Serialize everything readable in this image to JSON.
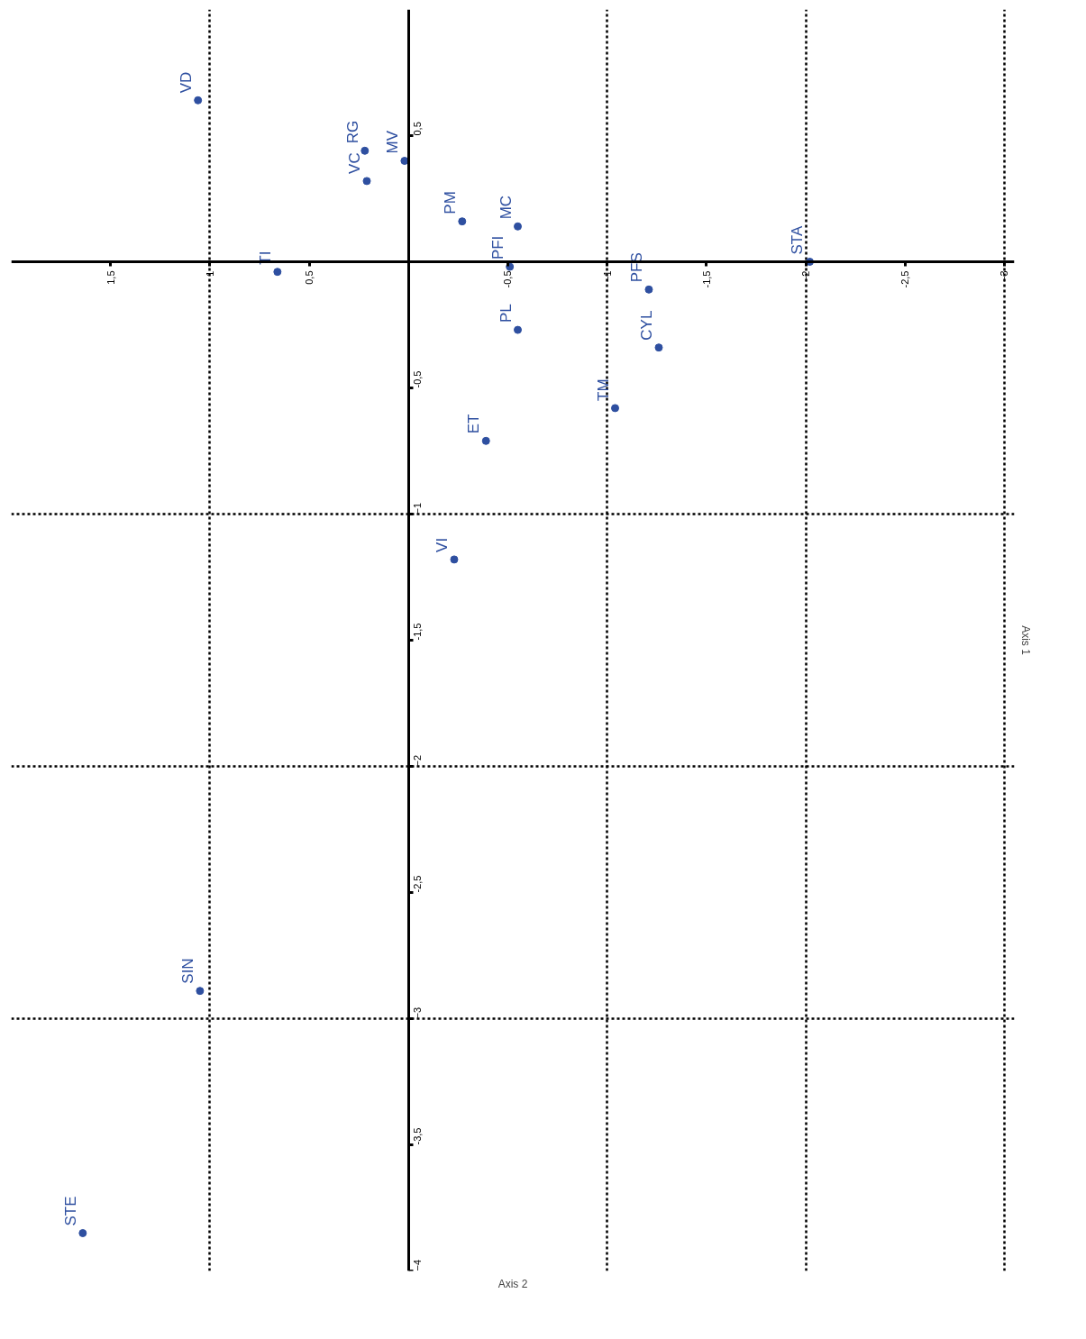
{
  "chart_data": {
    "type": "scatter",
    "xlabel": "Axis 2",
    "ylabel": "Axis 1",
    "xlim": [
      2,
      -3.05
    ],
    "ylim": [
      -4,
      1
    ],
    "xticks": [
      {
        "value": 1.5,
        "label": "1,5"
      },
      1,
      {
        "value": 0.5,
        "label": "0,5"
      },
      {
        "value": -0.5,
        "label": "-0,5"
      },
      -1,
      {
        "value": -1.5,
        "label": "-1,5"
      },
      -2,
      {
        "value": -2.5,
        "label": "-2,5"
      },
      -3
    ],
    "yticks": [
      {
        "value": 0.5,
        "label": "0,5"
      },
      {
        "value": -0.5,
        "label": "-0,5"
      },
      -1,
      {
        "value": -1.5,
        "label": "-1,5"
      },
      -2,
      {
        "value": -2.5,
        "label": "-2,5"
      },
      -3,
      {
        "value": -3.5,
        "label": "-3,5"
      },
      -4
    ],
    "grid": true,
    "marker": "circle",
    "x": [
      1.06,
      0.22,
      0.02,
      0.21,
      -0.27,
      -0.55,
      -2.02,
      0.66,
      -0.51,
      -1.21,
      -0.55,
      -1.26,
      -1.04,
      -0.39,
      -0.23,
      1.05,
      1.64
    ],
    "series": [
      {
        "color": "#2e4fa0",
        "values": [
          0.64,
          0.44,
          0.4,
          0.32,
          0.16,
          0.14,
          0.0,
          -0.04,
          -0.02,
          -0.11,
          -0.27,
          -0.34,
          -0.58,
          -0.71,
          -1.18,
          -2.89,
          -3.85
        ]
      }
    ],
    "annotations": [
      {
        "text": "VD",
        "x": 1.06,
        "y": 0.64
      },
      {
        "text": "RG",
        "x": 0.22,
        "y": 0.44
      },
      {
        "text": "MV",
        "x": 0.02,
        "y": 0.4
      },
      {
        "text": "VC",
        "x": 0.21,
        "y": 0.32
      },
      {
        "text": "PM",
        "x": -0.27,
        "y": 0.16
      },
      {
        "text": "MC",
        "x": -0.55,
        "y": 0.14
      },
      {
        "text": "STA",
        "x": -2.02,
        "y": 0.0
      },
      {
        "text": "TI",
        "x": 0.66,
        "y": -0.04
      },
      {
        "text": "PFI",
        "x": -0.51,
        "y": -0.02
      },
      {
        "text": "PFS",
        "x": -1.21,
        "y": -0.11
      },
      {
        "text": "PL",
        "x": -0.55,
        "y": -0.27
      },
      {
        "text": "CYL",
        "x": -1.26,
        "y": -0.34
      },
      {
        "text": "TM",
        "x": -1.04,
        "y": -0.58
      },
      {
        "text": "ET",
        "x": -0.39,
        "y": -0.71
      },
      {
        "text": "VI",
        "x": -0.23,
        "y": -1.18
      },
      {
        "text": "SIN",
        "x": 1.05,
        "y": -2.89
      },
      {
        "text": "STE",
        "x": 1.64,
        "y": -3.85
      }
    ]
  }
}
